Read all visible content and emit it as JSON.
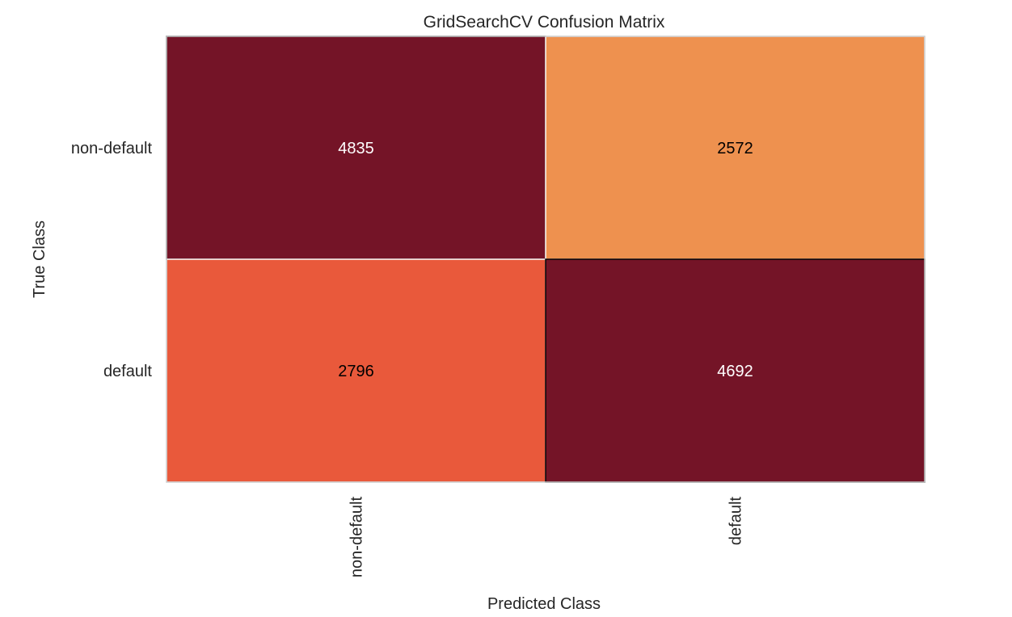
{
  "chart_data": {
    "type": "heatmap",
    "title": "GridSearchCV Confusion Matrix",
    "xlabel": "Predicted Class",
    "ylabel": "True Class",
    "x_categories": [
      "non-default",
      "default"
    ],
    "y_categories": [
      "non-default",
      "default"
    ],
    "values": [
      [
        4835,
        2572
      ],
      [
        2796,
        4692
      ]
    ],
    "cell_colors": [
      [
        "#741427",
        "#ee914f"
      ],
      [
        "#e9593b",
        "#741427"
      ]
    ],
    "label_colors": [
      [
        "#ffffff",
        "#000000"
      ],
      [
        "#000000",
        "#ffffff"
      ]
    ],
    "grid": false,
    "legend": "none"
  }
}
